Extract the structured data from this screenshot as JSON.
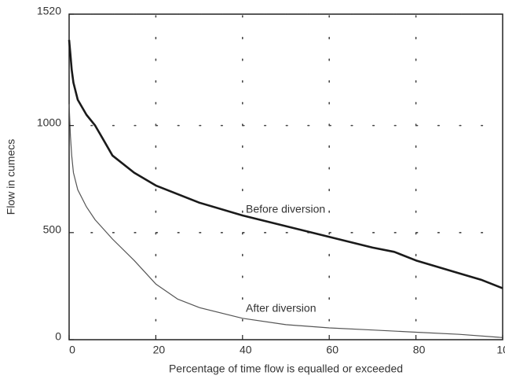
{
  "chart_data": {
    "type": "line",
    "x_label": "Percentage of time flow is equalled or exceeded",
    "y_label": "Flow in cumecs",
    "annotations": [
      "Before diversion",
      "After diversion"
    ],
    "xlim": [
      0,
      100
    ],
    "xticks": [
      0,
      20,
      40,
      60,
      80,
      100
    ],
    "ylim": [
      0,
      1520
    ],
    "yticks": [
      0,
      500,
      1000,
      1520
    ],
    "grid": true,
    "series": [
      {
        "name": "Before diversion",
        "color": "#1a1a1a",
        "x": [
          0,
          0.3,
          0.6,
          1,
          2,
          4,
          6,
          8,
          10,
          15,
          20,
          30,
          40,
          50,
          60,
          70,
          75,
          80,
          90,
          95,
          100
        ],
        "values": [
          1400,
          1330,
          1260,
          1200,
          1120,
          1050,
          1000,
          930,
          860,
          780,
          720,
          640,
          580,
          530,
          480,
          430,
          410,
          370,
          310,
          280,
          240
        ]
      },
      {
        "name": "After diversion",
        "color": "#555555",
        "x": [
          0,
          0.3,
          0.6,
          1,
          2,
          4,
          6,
          10,
          15,
          20,
          25,
          30,
          40,
          50,
          60,
          70,
          80,
          90,
          100
        ],
        "values": [
          1100,
          950,
          860,
          780,
          700,
          620,
          560,
          470,
          370,
          260,
          190,
          150,
          100,
          70,
          55,
          45,
          35,
          25,
          10
        ]
      }
    ]
  }
}
